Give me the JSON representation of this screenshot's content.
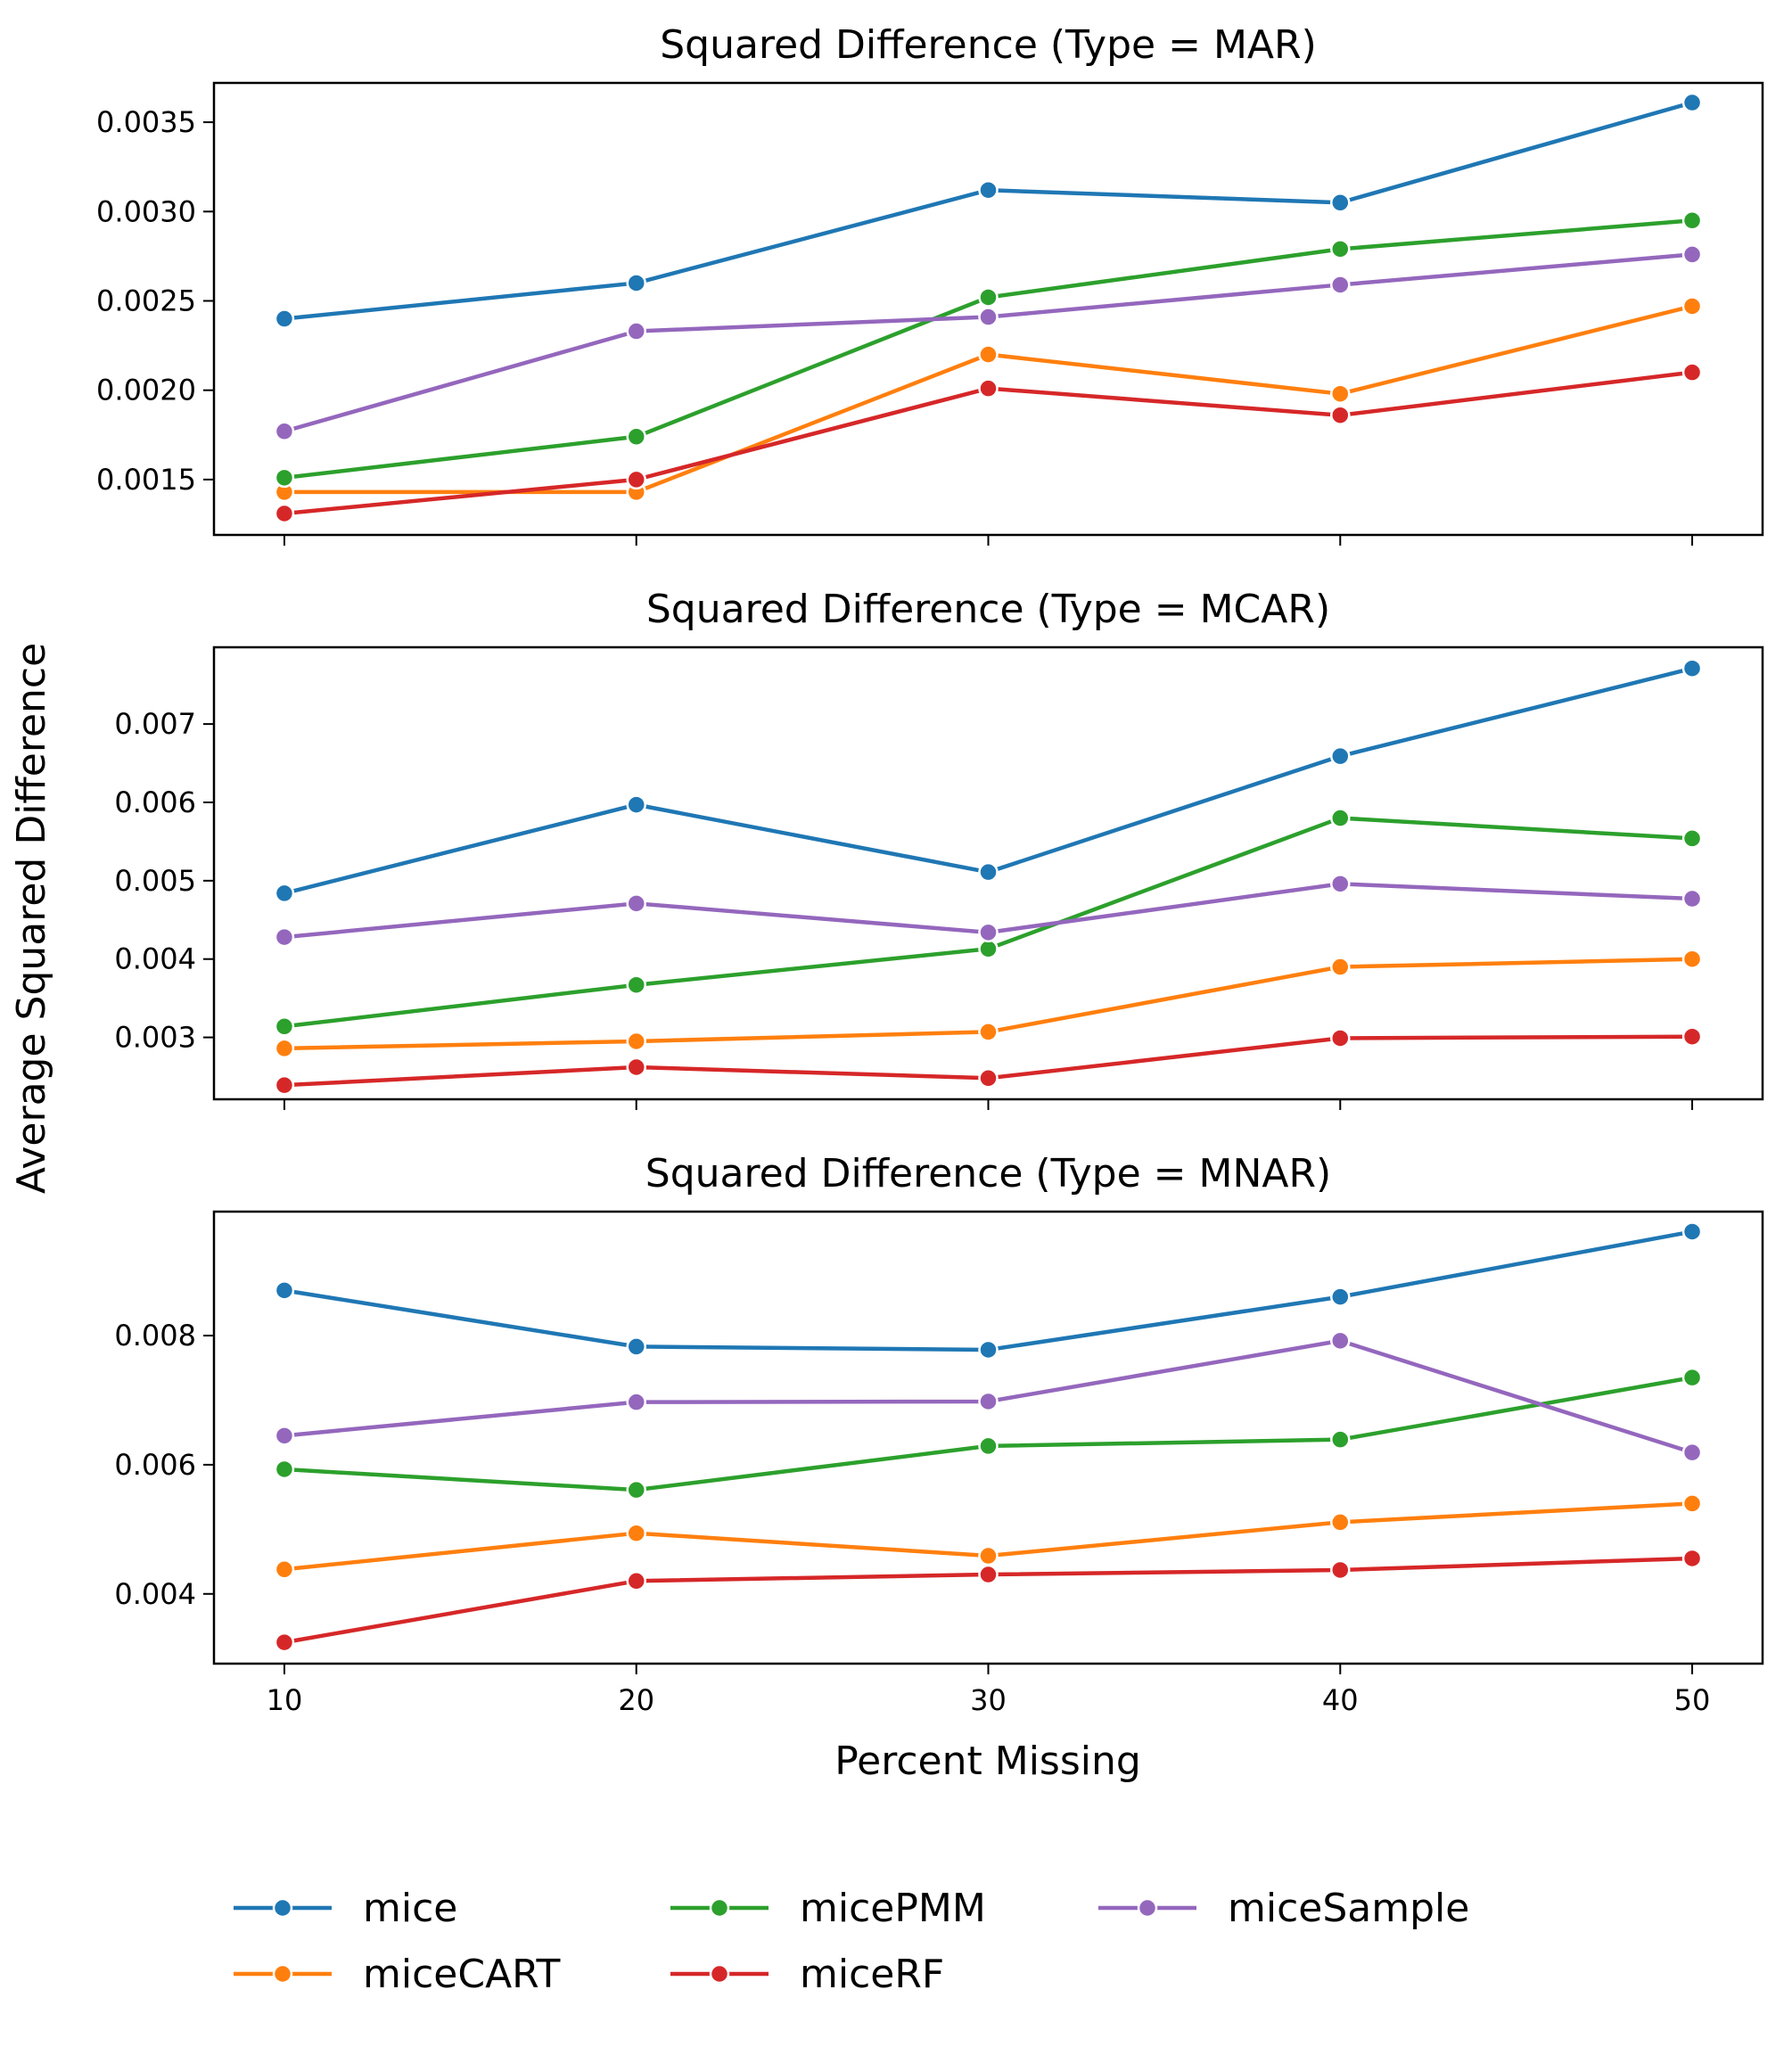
{
  "shared": {
    "xlabel": "Percent Missing",
    "ylabel": "Average Squared Difference",
    "x": [
      10,
      20,
      30,
      40,
      50
    ],
    "xticks": [
      "10",
      "20",
      "30",
      "40",
      "50"
    ],
    "colors": {
      "mice": "#1f77b4",
      "miceCART": "#ff7f0e",
      "micePMM": "#2ca02c",
      "miceRF": "#d62728",
      "miceSample": "#9467bd"
    }
  },
  "legend": {
    "placement": "bottom",
    "entries": [
      "mice",
      "miceCART",
      "micePMM",
      "miceRF",
      "miceSample"
    ]
  },
  "chart_data": [
    {
      "type": "line",
      "title": "Squared Difference (Type = MAR)",
      "x": [
        10,
        20,
        30,
        40,
        50
      ],
      "ylim": [
        0.00119,
        0.00372
      ],
      "yticks": [
        0.0015,
        0.002,
        0.0025,
        0.003,
        0.0035
      ],
      "ytick_labels": [
        "0.0015",
        "0.0020",
        "0.0025",
        "0.0030",
        "0.0035"
      ],
      "series": [
        {
          "name": "mice",
          "values": [
            0.0024,
            0.0026,
            0.00312,
            0.00305,
            0.00361
          ]
        },
        {
          "name": "miceCART",
          "values": [
            0.00143,
            0.00143,
            0.0022,
            0.00198,
            0.00247
          ]
        },
        {
          "name": "micePMM",
          "values": [
            0.00151,
            0.00174,
            0.00252,
            0.00279,
            0.00295
          ]
        },
        {
          "name": "miceRF",
          "values": [
            0.00131,
            0.0015,
            0.00201,
            0.00186,
            0.0021
          ]
        },
        {
          "name": "miceSample",
          "values": [
            0.00177,
            0.00233,
            0.00241,
            0.00259,
            0.00276
          ]
        }
      ]
    },
    {
      "type": "line",
      "title": "Squared Difference (Type = MCAR)",
      "x": [
        10,
        20,
        30,
        40,
        50
      ],
      "ylim": [
        0.00221,
        0.00798
      ],
      "yticks": [
        0.003,
        0.004,
        0.005,
        0.006,
        0.007
      ],
      "ytick_labels": [
        "0.003",
        "0.004",
        "0.005",
        "0.006",
        "0.007"
      ],
      "series": [
        {
          "name": "mice",
          "values": [
            0.00484,
            0.00597,
            0.00511,
            0.00659,
            0.00771
          ]
        },
        {
          "name": "miceCART",
          "values": [
            0.00286,
            0.00295,
            0.00307,
            0.0039,
            0.004
          ]
        },
        {
          "name": "micePMM",
          "values": [
            0.00314,
            0.00367,
            0.00413,
            0.0058,
            0.00554
          ]
        },
        {
          "name": "miceRF",
          "values": [
            0.00239,
            0.00262,
            0.00248,
            0.00299,
            0.00301
          ]
        },
        {
          "name": "miceSample",
          "values": [
            0.00428,
            0.00471,
            0.00434,
            0.00496,
            0.00477
          ]
        }
      ]
    },
    {
      "type": "line",
      "title": "Squared Difference (Type = MNAR)",
      "x": [
        10,
        20,
        30,
        40,
        50
      ],
      "ylim": [
        0.00292,
        0.00992
      ],
      "yticks": [
        0.004,
        0.006,
        0.008
      ],
      "ytick_labels": [
        "0.004",
        "0.006",
        "0.008"
      ],
      "series": [
        {
          "name": "mice",
          "values": [
            0.0087,
            0.00783,
            0.00778,
            0.0086,
            0.00961
          ]
        },
        {
          "name": "miceCART",
          "values": [
            0.00438,
            0.00494,
            0.00459,
            0.00511,
            0.0054
          ]
        },
        {
          "name": "micePMM",
          "values": [
            0.00593,
            0.00561,
            0.00629,
            0.00639,
            0.00735
          ]
        },
        {
          "name": "miceRF",
          "values": [
            0.00325,
            0.0042,
            0.0043,
            0.00437,
            0.00455
          ]
        },
        {
          "name": "miceSample",
          "values": [
            0.00645,
            0.00697,
            0.00698,
            0.00792,
            0.00619
          ]
        }
      ]
    }
  ]
}
